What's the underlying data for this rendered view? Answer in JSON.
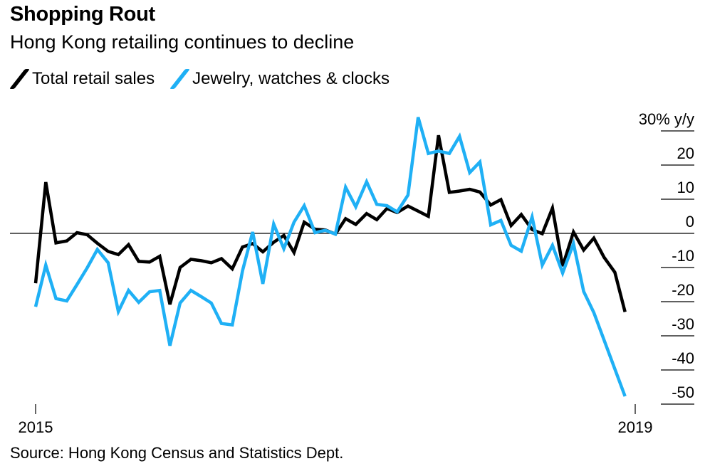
{
  "title": "Shopping Rout",
  "subtitle": "Hong Kong retailing continues to decline",
  "source": "Source: Hong Kong Census and Statistics Dept.",
  "chart_data": {
    "type": "line",
    "x_start": "2015-01",
    "x_end": "2019-01",
    "x_ticks": [
      "2015",
      "2019"
    ],
    "y_ticks": [
      {
        "value": 30,
        "label": "30% y/y"
      },
      {
        "value": 20,
        "label": "20"
      },
      {
        "value": 10,
        "label": "10"
      },
      {
        "value": 0,
        "label": "0"
      },
      {
        "value": -10,
        "label": "-10"
      },
      {
        "value": -20,
        "label": "-20"
      },
      {
        "value": -30,
        "label": "-30"
      },
      {
        "value": -40,
        "label": "-40"
      },
      {
        "value": -50,
        "label": "-50"
      }
    ],
    "ylim": [
      -50,
      30
    ],
    "zero_line": true,
    "legend_position": "top-left",
    "series": [
      {
        "name": "Total retail sales",
        "color": "#000000",
        "values": [
          -14.6,
          15.0,
          -2.8,
          -2.2,
          0.2,
          -0.4,
          -2.9,
          -5.3,
          -6.2,
          -3.3,
          -8.2,
          -8.4,
          -6.7,
          -20.8,
          -10.0,
          -7.6,
          -8.0,
          -8.6,
          -7.4,
          -10.4,
          -4.0,
          -3.0,
          -5.4,
          -2.6,
          -0.6,
          -5.6,
          3.3,
          1.2,
          1.0,
          -0.2,
          4.3,
          2.6,
          5.8,
          4.0,
          7.3,
          6.1,
          8.0,
          6.5,
          5.0,
          28.7,
          12.0,
          12.4,
          12.9,
          12.1,
          8.3,
          9.9,
          2.3,
          5.5,
          1.1,
          -0.1,
          7.4,
          -9.6,
          0.4,
          -4.9,
          -1.4,
          -7.0,
          -11.4,
          -23.0
        ],
        "x_fraction": [
          0.0,
          0.017,
          0.034,
          0.052,
          0.069,
          0.086,
          0.103,
          0.121,
          0.138,
          0.155,
          0.172,
          0.19,
          0.207,
          0.224,
          0.241,
          0.259,
          0.276,
          0.293,
          0.31,
          0.328,
          0.345,
          0.362,
          0.379,
          0.397,
          0.414,
          0.431,
          0.448,
          0.466,
          0.483,
          0.5,
          0.517,
          0.534,
          0.552,
          0.569,
          0.586,
          0.603,
          0.621,
          0.638,
          0.655,
          0.672,
          0.69,
          0.707,
          0.724,
          0.741,
          0.759,
          0.776,
          0.793,
          0.81,
          0.828,
          0.845,
          0.862,
          0.879,
          0.897,
          0.914,
          0.931,
          0.948,
          0.966,
          0.983
        ]
      },
      {
        "name": "Jewelry, watches & clocks",
        "color": "#1fb0f5",
        "values": [
          -21.5,
          -9.3,
          -19.1,
          -19.8,
          -15.0,
          -10.1,
          -4.7,
          -8.6,
          -22.9,
          -16.7,
          -20.2,
          -17.1,
          -16.7,
          -32.9,
          -20.4,
          -16.7,
          -18.5,
          -20.4,
          -26.4,
          -26.8,
          -11.0,
          0.4,
          -14.8,
          2.7,
          -4.5,
          3.3,
          8.1,
          0.2,
          0.9,
          -0.2,
          13.5,
          7.8,
          15.1,
          8.5,
          8.1,
          6.3,
          11.2,
          34.0,
          23.4,
          24.1,
          23.4,
          28.4,
          17.8,
          20.9,
          2.5,
          3.8,
          -3.5,
          -5.2,
          4.8,
          -9.3,
          -3.5,
          -11.6,
          -3.0,
          -17.0,
          -23.2,
          -47.7
        ],
        "x_fraction": [
          0.0,
          0.017,
          0.034,
          0.052,
          0.069,
          0.086,
          0.103,
          0.121,
          0.138,
          0.155,
          0.172,
          0.19,
          0.207,
          0.224,
          0.241,
          0.259,
          0.276,
          0.293,
          0.31,
          0.328,
          0.345,
          0.362,
          0.379,
          0.397,
          0.414,
          0.431,
          0.448,
          0.466,
          0.483,
          0.5,
          0.517,
          0.534,
          0.552,
          0.569,
          0.586,
          0.603,
          0.621,
          0.638,
          0.655,
          0.672,
          0.69,
          0.707,
          0.724,
          0.741,
          0.759,
          0.776,
          0.793,
          0.81,
          0.828,
          0.845,
          0.862,
          0.879,
          0.897,
          0.914,
          0.931,
          0.983
        ]
      }
    ]
  }
}
